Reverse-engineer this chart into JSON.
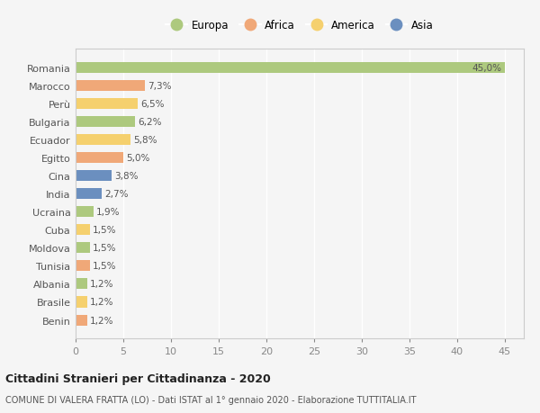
{
  "countries": [
    "Romania",
    "Marocco",
    "Perù",
    "Bulgaria",
    "Ecuador",
    "Egitto",
    "Cina",
    "India",
    "Ucraina",
    "Cuba",
    "Moldova",
    "Tunisia",
    "Albania",
    "Brasile",
    "Benin"
  ],
  "values": [
    45.0,
    7.3,
    6.5,
    6.2,
    5.8,
    5.0,
    3.8,
    2.7,
    1.9,
    1.5,
    1.5,
    1.5,
    1.2,
    1.2,
    1.2
  ],
  "labels": [
    "45,0%",
    "7,3%",
    "6,5%",
    "6,2%",
    "5,8%",
    "5,0%",
    "3,8%",
    "2,7%",
    "1,9%",
    "1,5%",
    "1,5%",
    "1,5%",
    "1,2%",
    "1,2%",
    "1,2%"
  ],
  "continents": [
    "Europa",
    "Africa",
    "America",
    "Europa",
    "America",
    "Africa",
    "Asia",
    "Asia",
    "Europa",
    "America",
    "Europa",
    "Africa",
    "Europa",
    "America",
    "Africa"
  ],
  "colors": {
    "Europa": "#adc97e",
    "Africa": "#f0a878",
    "America": "#f5d06e",
    "Asia": "#6b8fbf"
  },
  "legend_order": [
    "Europa",
    "Africa",
    "America",
    "Asia"
  ],
  "title": "Cittadini Stranieri per Cittadinanza - 2020",
  "subtitle": "COMUNE DI VALERA FRATTA (LO) - Dati ISTAT al 1° gennaio 2020 - Elaborazione TUTTITALIA.IT",
  "xlim": [
    0,
    47
  ],
  "xticks": [
    0,
    5,
    10,
    15,
    20,
    25,
    30,
    35,
    40,
    45
  ],
  "background_color": "#f5f5f5",
  "grid_color": "#ffffff",
  "bar_height": 0.6
}
